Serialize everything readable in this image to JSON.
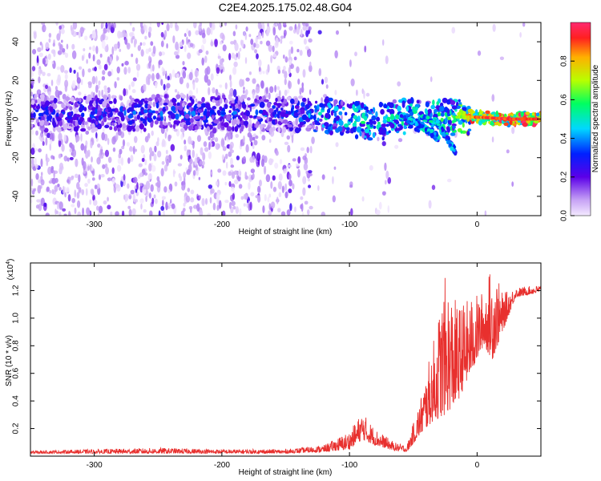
{
  "figure": {
    "title": "C2E4.2025.175.02.48.G04"
  },
  "chart_data": [
    {
      "type": "heatmap",
      "name": "spectrogram",
      "xlabel": "Height of straight line (km)",
      "ylabel": "Frequency (Hz)",
      "xlim": [
        -350,
        50
      ],
      "ylim": [
        -50,
        50
      ],
      "x_ticks": [
        -300,
        -200,
        -100,
        0
      ],
      "x_tick_labels": [
        "-300",
        "-200",
        "-100",
        "0"
      ],
      "y_ticks": [
        -40,
        -20,
        0,
        20,
        40
      ],
      "y_tick_labels": [
        "-40",
        "-20",
        "0",
        "20",
        "40"
      ],
      "colorbar": {
        "label": "Normalized spectral amplitude",
        "range": [
          0,
          1
        ],
        "ticks": [
          0.0,
          0.2,
          0.4,
          0.6,
          0.8
        ],
        "tick_labels": [
          "0.0",
          "0.2",
          "0.4",
          "0.6",
          "0.8"
        ],
        "colormap": "rainbow"
      },
      "trend": [
        {
          "x": -350,
          "center": 3,
          "amplitude": 0.3
        },
        {
          "x": -300,
          "center": 3,
          "amplitude": 0.35
        },
        {
          "x": -250,
          "center": 3,
          "amplitude": 0.35
        },
        {
          "x": -200,
          "center": 3,
          "amplitude": 0.35
        },
        {
          "x": -150,
          "center": 3,
          "amplitude": 0.35
        },
        {
          "x": -120,
          "center": 2,
          "amplitude": 0.5
        },
        {
          "x": -100,
          "center": 0,
          "amplitude": 0.55
        },
        {
          "x": -80,
          "center": -2,
          "amplitude": 0.5
        },
        {
          "x": -60,
          "center": 1,
          "amplitude": 0.55
        },
        {
          "x": -40,
          "center": 1,
          "amplitude": 0.6
        },
        {
          "x": -20,
          "center": 1,
          "amplitude": 0.6
        },
        {
          "x": 0,
          "center": 1,
          "amplitude": 0.9
        },
        {
          "x": 25,
          "center": 0,
          "amplitude": 0.95
        },
        {
          "x": 50,
          "center": 0,
          "amplitude": 0.95
        }
      ],
      "branches": [
        {
          "x": [
            -60,
            -45,
            -30
          ],
          "y": [
            2,
            -3,
            -10
          ]
        },
        {
          "x": [
            -45,
            -30,
            -17
          ],
          "y": [
            2,
            -3,
            -17
          ]
        }
      ]
    },
    {
      "type": "line",
      "name": "snr",
      "xlabel": "Height of straight line (km)",
      "ylabel": "SNR (10 * v/v)",
      "y_multiplier_label": "(x10",
      "y_multiplier_exponent": "4",
      "xlim": [
        -350,
        50
      ],
      "ylim": [
        0,
        1.4
      ],
      "x_ticks": [
        -300,
        -200,
        -100,
        0
      ],
      "x_tick_labels": [
        "-300",
        "-200",
        "-100",
        "0"
      ],
      "y_ticks": [
        0.2,
        0.4,
        0.6,
        0.8,
        1.0,
        1.2
      ],
      "y_tick_labels": [
        "0.2",
        "0.4",
        "0.6",
        "0.8",
        "1.0",
        "1.2"
      ],
      "series_color": "#e8302e",
      "envelope": [
        {
          "x": -350,
          "base": 0.02,
          "peak": 0.04
        },
        {
          "x": -300,
          "base": 0.02,
          "peak": 0.05
        },
        {
          "x": -250,
          "base": 0.02,
          "peak": 0.06
        },
        {
          "x": -200,
          "base": 0.02,
          "peak": 0.05
        },
        {
          "x": -150,
          "base": 0.02,
          "peak": 0.05
        },
        {
          "x": -120,
          "base": 0.03,
          "peak": 0.08
        },
        {
          "x": -100,
          "base": 0.05,
          "peak": 0.18
        },
        {
          "x": -90,
          "base": 0.12,
          "peak": 0.32
        },
        {
          "x": -80,
          "base": 0.08,
          "peak": 0.2
        },
        {
          "x": -65,
          "base": 0.04,
          "peak": 0.1
        },
        {
          "x": -55,
          "base": 0.03,
          "peak": 0.08
        },
        {
          "x": -45,
          "base": 0.15,
          "peak": 0.4
        },
        {
          "x": -35,
          "base": 0.25,
          "peak": 0.8
        },
        {
          "x": -25,
          "base": 0.3,
          "peak": 1.3
        },
        {
          "x": -15,
          "base": 0.4,
          "peak": 1.1
        },
        {
          "x": -5,
          "base": 0.6,
          "peak": 1.15
        },
        {
          "x": 5,
          "base": 0.8,
          "peak": 1.2
        },
        {
          "x": 12,
          "base": 0.7,
          "peak": 1.4
        },
        {
          "x": 20,
          "base": 0.9,
          "peak": 1.18
        },
        {
          "x": 30,
          "base": 1.15,
          "peak": 1.22
        },
        {
          "x": 50,
          "base": 1.19,
          "peak": 1.24
        }
      ]
    }
  ]
}
